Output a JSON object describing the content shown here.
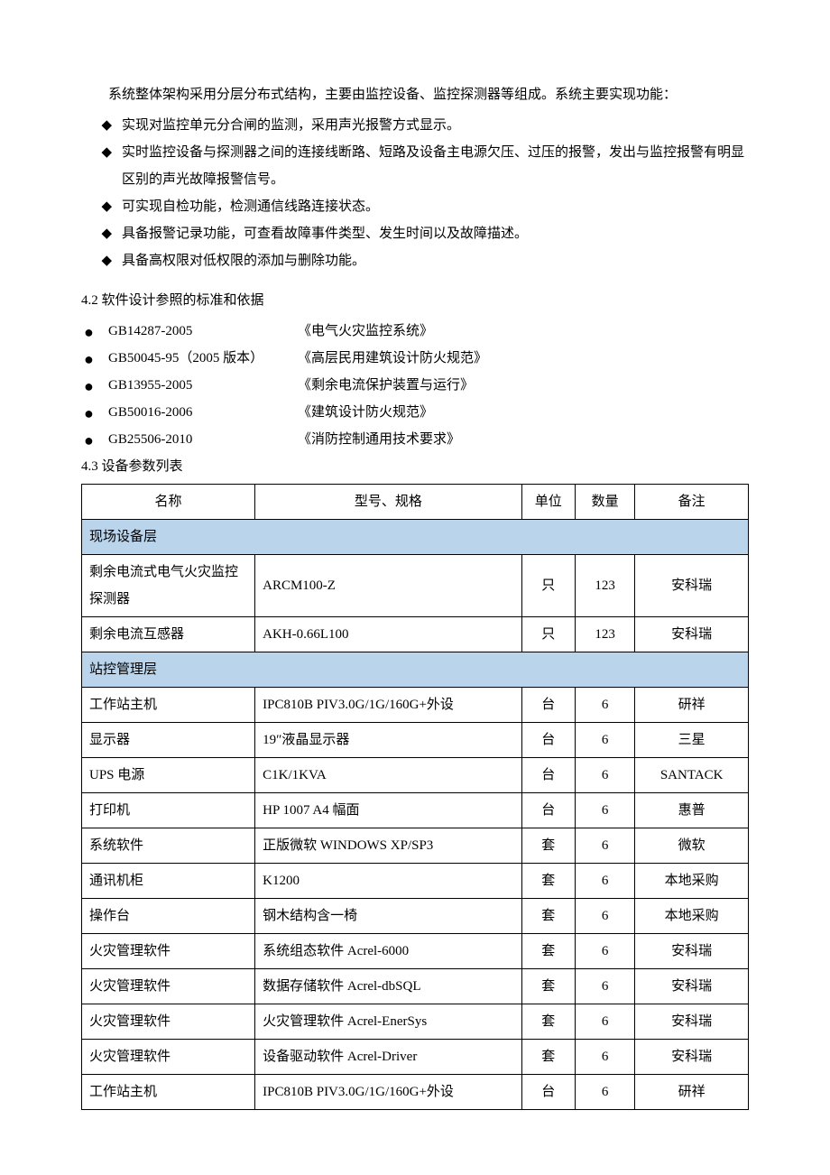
{
  "intro": {
    "para": "系统整体架构采用分层分布式结构，主要由监控设备、监控探测器等组成。系统主要实现功能：",
    "bullets": [
      "实现对监控单元分合闸的监测，采用声光报警方式显示。",
      "实时监控设备与探测器之间的连接线断路、短路及设备主电源欠压、过压的报警，发出与监控报警有明显区别的声光故障报警信号。",
      "可实现自检功能，检测通信线路连接状态。",
      "具备报警记录功能，可查看故障事件类型、发生时间以及故障描述。",
      "具备高权限对低权限的添加与删除功能。"
    ]
  },
  "section_4_2": {
    "title": "4.2 软件设计参照的标准和依据",
    "items": [
      {
        "code": "GB14287-2005",
        "name": "《电气火灾监控系统》"
      },
      {
        "code": "GB50045-95（2005 版本）",
        "name": "《高层民用建筑设计防火规范》"
      },
      {
        "code": "GB13955-2005",
        "name": "《剩余电流保护装置与运行》"
      },
      {
        "code": "GB50016-2006",
        "name": "《建筑设计防火规范》"
      },
      {
        "code": "GB25506-2010",
        "name": "《消防控制通用技术要求》"
      }
    ]
  },
  "section_4_3": {
    "title": "4.3 设备参数列表",
    "headers": {
      "name": "名称",
      "model": "型号、规格",
      "unit": "单位",
      "qty": "数量",
      "remark": "备注"
    },
    "groups": [
      {
        "label": "现场设备层",
        "rows": [
          {
            "name": "剩余电流式电气火灾监控探测器",
            "model": "ARCM100-Z",
            "unit": "只",
            "qty": "123",
            "remark": "安科瑞"
          },
          {
            "name": "剩余电流互感器",
            "model": "AKH-0.66L100",
            "unit": "只",
            "qty": "123",
            "remark": "安科瑞"
          }
        ]
      },
      {
        "label": "站控管理层",
        "rows": [
          {
            "name": "工作站主机",
            "model": "IPC810B PIV3.0G/1G/160G+外设",
            "unit": "台",
            "qty": "6",
            "remark": "研祥"
          },
          {
            "name": "显示器",
            "model": "19″液晶显示器",
            "unit": "台",
            "qty": "6",
            "remark": "三星"
          },
          {
            "name": "UPS 电源",
            "model": "C1K/1KVA",
            "unit": "台",
            "qty": "6",
            "remark": "SANTACK"
          },
          {
            "name": "打印机",
            "model": "HP 1007 A4 幅面",
            "unit": "台",
            "qty": "6",
            "remark": "惠普"
          },
          {
            "name": "系统软件",
            "model": "正版微软 WINDOWS XP/SP3",
            "unit": "套",
            "qty": "6",
            "remark": "微软"
          },
          {
            "name": "通讯机柜",
            "model": "K1200",
            "unit": "套",
            "qty": "6",
            "remark": "本地采购"
          },
          {
            "name": "操作台",
            "model": "钢木结构含一椅",
            "unit": "套",
            "qty": "6",
            "remark": "本地采购"
          },
          {
            "name": "火灾管理软件",
            "model": "系统组态软件 Acrel-6000",
            "unit": "套",
            "qty": "6",
            "remark": "安科瑞"
          },
          {
            "name": "火灾管理软件",
            "model": "数据存储软件 Acrel-dbSQL",
            "unit": "套",
            "qty": "6",
            "remark": "安科瑞"
          },
          {
            "name": "火灾管理软件",
            "model": "火灾管理软件 Acrel-EnerSys",
            "unit": "套",
            "qty": "6",
            "remark": "安科瑞"
          },
          {
            "name": "火灾管理软件",
            "model": "设备驱动软件 Acrel-Driver",
            "unit": "套",
            "qty": "6",
            "remark": "安科瑞"
          },
          {
            "name": "工作站主机",
            "model": "IPC810B PIV3.0G/1G/160G+外设",
            "unit": "台",
            "qty": "6",
            "remark": "研祥"
          }
        ]
      }
    ]
  }
}
